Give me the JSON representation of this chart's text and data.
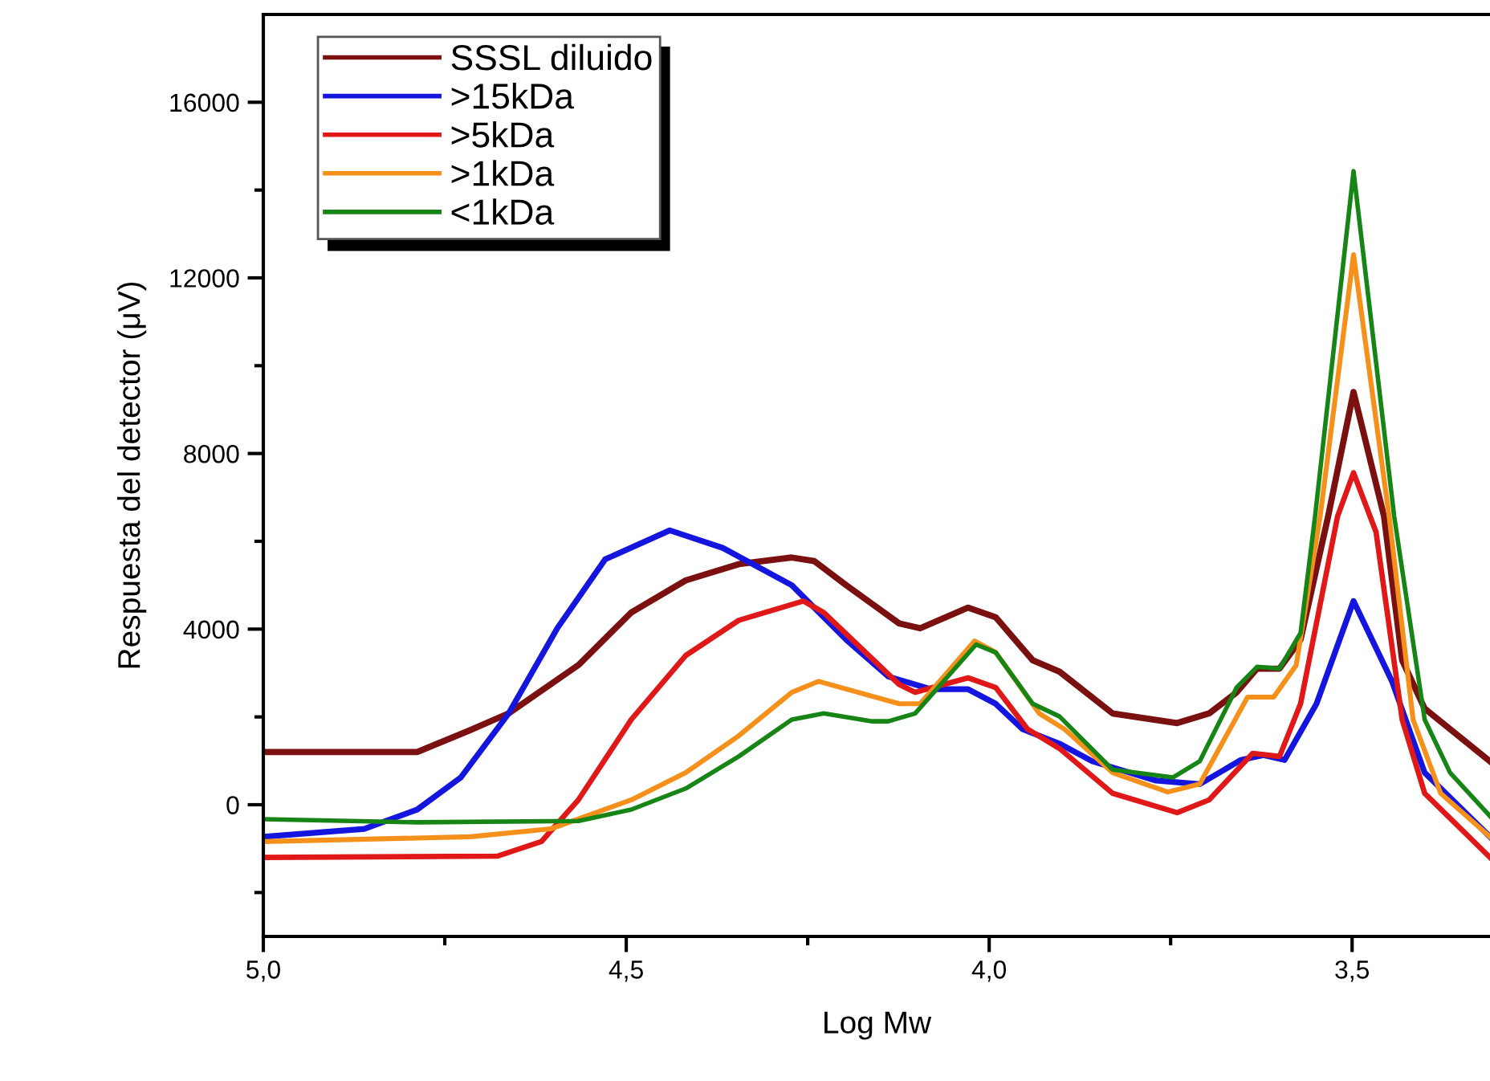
{
  "chart_data": {
    "type": "line",
    "xlabel": "Log Mw",
    "ylabel": "Respuesta del detector (μV)",
    "xlim": [
      5.0,
      3.31
    ],
    "ylim": [
      -3000,
      18000
    ],
    "xticks": [
      {
        "value": 5.0,
        "label": "5,0"
      },
      {
        "value": 4.75,
        "label": null
      },
      {
        "value": 4.5,
        "label": "4,5"
      },
      {
        "value": 4.25,
        "label": null
      },
      {
        "value": 4.0,
        "label": "4,0"
      },
      {
        "value": 3.75,
        "label": null
      },
      {
        "value": 3.5,
        "label": "3,5"
      }
    ],
    "yticks": [
      {
        "value": -2000,
        "label": null
      },
      0,
      {
        "value": 2000,
        "label": null
      },
      4000,
      {
        "value": 6000,
        "label": null
      },
      8000,
      {
        "value": 10000,
        "label": null
      },
      12000,
      {
        "value": 14000,
        "label": null
      },
      16000
    ],
    "grid": false,
    "legend": "top left",
    "marker": "none",
    "line_style": "solid",
    "series": [
      {
        "name": "SSSL diluido",
        "color": "#7a1010",
        "x": [
          5.0,
          4.788,
          4.715,
          4.662,
          4.566,
          4.493,
          4.418,
          4.345,
          4.272,
          4.241,
          4.197,
          4.124,
          4.095,
          4.029,
          3.991,
          3.94,
          3.903,
          3.83,
          3.741,
          3.697,
          3.659,
          3.631,
          3.6,
          3.571,
          3.533,
          3.498,
          3.456,
          3.431,
          3.4,
          3.31
        ],
        "values": [
          1200,
          1200,
          1700,
          2080,
          3180,
          4380,
          5110,
          5480,
          5630,
          5550,
          5000,
          4130,
          4020,
          4490,
          4270,
          3290,
          3030,
          2080,
          1860,
          2080,
          2560,
          3100,
          3100,
          3760,
          6570,
          9400,
          6570,
          3290,
          2190,
          990
        ]
      },
      {
        "name": ">15kDa",
        "color": "#1515e0",
        "x": [
          5.0,
          4.861,
          4.788,
          4.728,
          4.662,
          4.595,
          4.529,
          4.44,
          4.367,
          4.272,
          4.197,
          4.139,
          4.08,
          4.029,
          3.991,
          3.954,
          3.903,
          3.858,
          3.77,
          3.71,
          3.653,
          3.622,
          3.593,
          3.549,
          3.498,
          3.445,
          3.4,
          3.31
        ],
        "values": [
          -730,
          -550,
          -110,
          620,
          2080,
          4020,
          5590,
          6250,
          5850,
          5000,
          3760,
          2920,
          2630,
          2630,
          2300,
          1720,
          1390,
          990,
          550,
          470,
          1020,
          1130,
          1020,
          2300,
          4640,
          2810,
          730,
          -730
        ]
      },
      {
        "name": ">5kDa",
        "color": "#e01818",
        "x": [
          5.0,
          4.677,
          4.617,
          4.566,
          4.493,
          4.418,
          4.345,
          4.256,
          4.228,
          4.124,
          4.102,
          4.029,
          3.991,
          3.947,
          3.903,
          3.83,
          3.741,
          3.697,
          3.637,
          3.6,
          3.571,
          3.52,
          3.498,
          3.467,
          3.431,
          3.4,
          3.31
        ],
        "values": [
          -1200,
          -1170,
          -840,
          110,
          1940,
          3400,
          4200,
          4640,
          4380,
          2740,
          2560,
          2890,
          2670,
          1720,
          1280,
          260,
          -180,
          110,
          1170,
          1100,
          2300,
          6570,
          7560,
          6210,
          1940,
          260,
          -1200
        ]
      },
      {
        "name": ">1kDa",
        "color": "#f5901a",
        "x": [
          5.0,
          4.715,
          4.604,
          4.493,
          4.418,
          4.345,
          4.272,
          4.235,
          4.124,
          4.095,
          4.02,
          3.991,
          3.931,
          3.896,
          3.83,
          3.754,
          3.71,
          3.644,
          3.608,
          3.577,
          3.544,
          3.498,
          3.449,
          3.416,
          3.378,
          3.31
        ],
        "values": [
          -840,
          -730,
          -550,
          110,
          730,
          1570,
          2560,
          2810,
          2300,
          2300,
          3730,
          3470,
          2080,
          1720,
          730,
          290,
          470,
          2450,
          2450,
          3180,
          6570,
          12530,
          6570,
          1940,
          260,
          -730
        ]
      },
      {
        "name": "<1kDa",
        "color": "#168516",
        "x": [
          5.0,
          4.788,
          4.566,
          4.493,
          4.418,
          4.345,
          4.272,
          4.228,
          4.161,
          4.139,
          4.102,
          4.018,
          3.991,
          3.94,
          3.903,
          3.83,
          3.747,
          3.71,
          3.659,
          3.631,
          3.6,
          3.571,
          3.551,
          3.498,
          3.442,
          3.4,
          3.365,
          3.31
        ],
        "values": [
          -330,
          -400,
          -370,
          -110,
          370,
          1100,
          1940,
          2080,
          1900,
          1900,
          2080,
          3650,
          3470,
          2300,
          2010,
          800,
          620,
          990,
          2670,
          3140,
          3100,
          3910,
          6570,
          14430,
          6570,
          1940,
          730,
          -260
        ]
      }
    ]
  }
}
